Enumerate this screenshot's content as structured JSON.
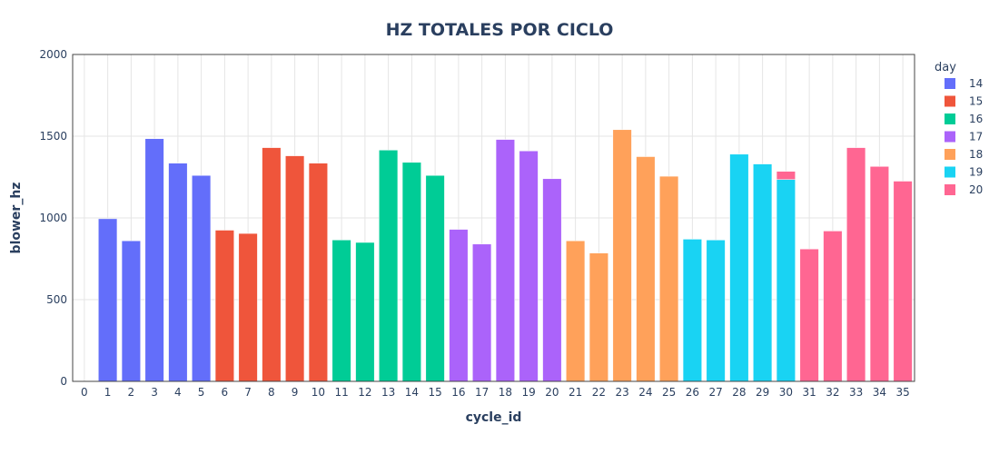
{
  "chart_data": {
    "type": "bar",
    "title": "HZ TOTALES POR CICLO",
    "xlabel": "cycle_id",
    "ylabel": "blower_hz",
    "ylim": [
      0,
      2000
    ],
    "yticks": [
      0,
      500,
      1000,
      1500,
      2000
    ],
    "x_range": [
      -0.5,
      35.5
    ],
    "grid": true,
    "barmode": "stack",
    "legend": {
      "title": "day",
      "position": "top-right"
    },
    "categories": [
      0,
      1,
      2,
      3,
      4,
      5,
      6,
      7,
      8,
      9,
      10,
      11,
      12,
      13,
      14,
      15,
      16,
      17,
      18,
      19,
      20,
      21,
      22,
      23,
      24,
      25,
      26,
      27,
      28,
      29,
      30,
      31,
      32,
      33,
      34,
      35
    ],
    "series": [
      {
        "name": "14",
        "color": "#636efa",
        "points": [
          {
            "x": 1,
            "y": 995
          },
          {
            "x": 2,
            "y": 860
          },
          {
            "x": 3,
            "y": 1485
          },
          {
            "x": 4,
            "y": 1335
          },
          {
            "x": 5,
            "y": 1260
          }
        ]
      },
      {
        "name": "15",
        "color": "#ef553b",
        "points": [
          {
            "x": 6,
            "y": 925
          },
          {
            "x": 7,
            "y": 905
          },
          {
            "x": 8,
            "y": 1430
          },
          {
            "x": 9,
            "y": 1380
          },
          {
            "x": 10,
            "y": 1335
          }
        ]
      },
      {
        "name": "16",
        "color": "#00cc96",
        "points": [
          {
            "x": 11,
            "y": 865
          },
          {
            "x": 12,
            "y": 850
          },
          {
            "x": 13,
            "y": 1415
          },
          {
            "x": 14,
            "y": 1340
          },
          {
            "x": 15,
            "y": 1260
          }
        ]
      },
      {
        "name": "17",
        "color": "#ab63fa",
        "points": [
          {
            "x": 16,
            "y": 930
          },
          {
            "x": 17,
            "y": 840
          },
          {
            "x": 18,
            "y": 1480
          },
          {
            "x": 19,
            "y": 1410
          },
          {
            "x": 20,
            "y": 1240
          }
        ]
      },
      {
        "name": "18",
        "color": "#ffa15a",
        "points": [
          {
            "x": 21,
            "y": 860
          },
          {
            "x": 22,
            "y": 785
          },
          {
            "x": 23,
            "y": 1540
          },
          {
            "x": 24,
            "y": 1375
          },
          {
            "x": 25,
            "y": 1255
          }
        ]
      },
      {
        "name": "19",
        "color": "#19d3f3",
        "points": [
          {
            "x": 26,
            "y": 870
          },
          {
            "x": 27,
            "y": 865
          },
          {
            "x": 28,
            "y": 1390
          },
          {
            "x": 29,
            "y": 1330
          },
          {
            "x": 30,
            "y": 1235
          }
        ]
      },
      {
        "name": "20",
        "color": "#ff6692",
        "points": [
          {
            "x": 30,
            "y": 50
          },
          {
            "x": 31,
            "y": 810
          },
          {
            "x": 32,
            "y": 920
          },
          {
            "x": 33,
            "y": 1430
          },
          {
            "x": 34,
            "y": 1315
          },
          {
            "x": 35,
            "y": 1225
          }
        ]
      }
    ]
  }
}
